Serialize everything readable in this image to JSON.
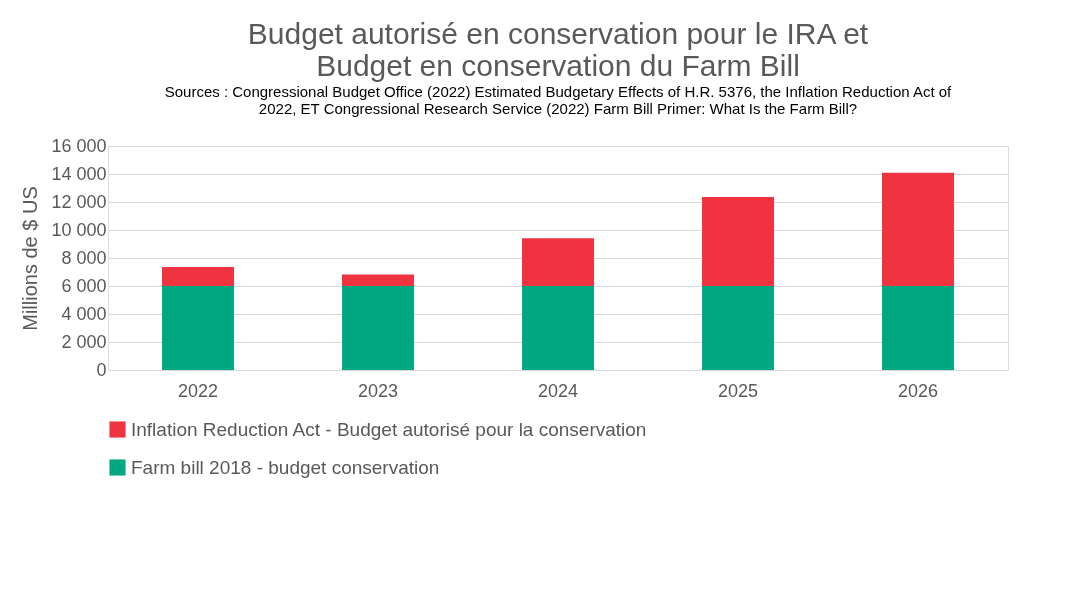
{
  "chart_data": {
    "type": "bar",
    "stacked": true,
    "title": [
      "Budget autorisé en conservation pour le IRA et",
      "Budget en conservation du Farm Bill"
    ],
    "ylabel": "Millions de $ US",
    "categories": [
      "2022",
      "2023",
      "2024",
      "2025",
      "2026"
    ],
    "series": [
      {
        "name": "Farm bill 2018 - budget conservation",
        "color": "#00a882",
        "values": [
          6000,
          6000,
          6000,
          6000,
          6000
        ]
      },
      {
        "name": "Inflation Reduction Act - Budget autorisé pour la conservation",
        "color": "#ef3340",
        "values": [
          1360,
          820,
          3410,
          6360,
          8090
        ]
      }
    ],
    "ylim": [
      0,
      16000
    ],
    "yticks": [
      {
        "value": 0,
        "label": "0"
      },
      {
        "value": 2000,
        "label": "2 000"
      },
      {
        "value": 4000,
        "label": "4 000"
      },
      {
        "value": 6000,
        "label": "6 000"
      },
      {
        "value": 8000,
        "label": "8 000"
      },
      {
        "value": 10000,
        "label": "10 000"
      },
      {
        "value": 12000,
        "label": "12 000"
      },
      {
        "value": 14000,
        "label": "14 000"
      },
      {
        "value": 16000,
        "label": "16 000"
      }
    ],
    "grid": "y",
    "legend": "bottom",
    "annotations": [
      "Sources : Congressional Budget Office (2022) Estimated Budgetary Effects of H.R. 5376, the Inflation Reduction Act of",
      "2022, ET Congressional Research Service (2022) Farm Bill Primer: What Is the Farm Bill?"
    ]
  }
}
